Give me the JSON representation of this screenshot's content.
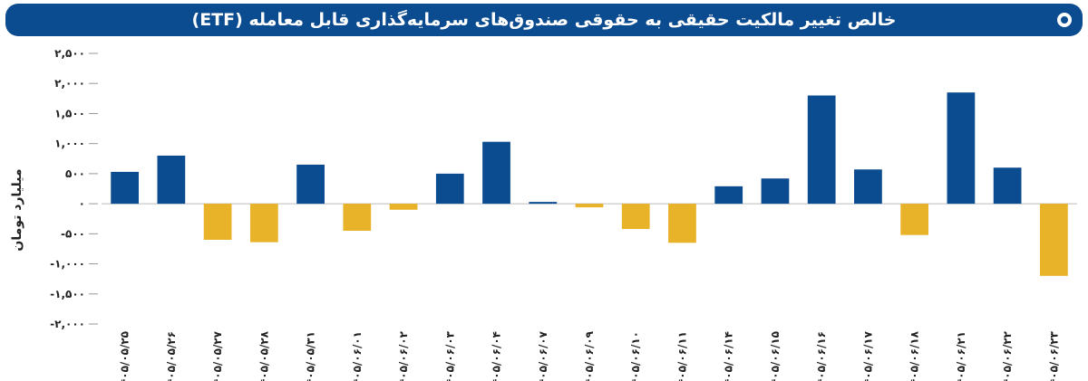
{
  "title": "خالص تغییر مالکیت حقیقی به حقوقی صندوق‌های سرمایه‌گذاری قابل معامله (ETF)",
  "chart_data": {
    "type": "bar",
    "title": "خالص تغییر مالکیت حقیقی به حقوقی صندوق‌های سرمایه‌گذاری قابل معامله (ETF)",
    "ylabel": "میلیارد تومان",
    "xlabel": "",
    "ylim": [
      -2000,
      2500
    ],
    "yticks": [
      2500,
      2000,
      1500,
      1000,
      500,
      0,
      -500,
      -1000,
      -1500,
      -2000
    ],
    "ytick_labels": [
      "۲,۵۰۰",
      "۲,۰۰۰",
      "۱,۵۰۰",
      "۱,۰۰۰",
      "۵۰۰",
      "۰",
      "-۵۰۰",
      "-۱,۰۰۰",
      "-۱,۵۰۰",
      "-۲,۰۰۰"
    ],
    "categories": [
      "۱۴۰۵/۰۵/۲۵",
      "۱۴۰۵/۰۵/۲۶",
      "۱۴۰۵/۰۵/۲۷",
      "۱۴۰۵/۰۵/۲۸",
      "۱۴۰۵/۰۵/۳۱",
      "۱۴۰۵/۰۶/۰۱",
      "۱۴۰۵/۰۶/۰۲",
      "۱۴۰۵/۰۶/۰۳",
      "۱۴۰۵/۰۶/۰۴",
      "۱۴۰۵/۰۶/۰۷",
      "۱۴۰۵/۰۶/۰۹",
      "۱۴۰۵/۰۶/۱۰",
      "۱۴۰۵/۰۶/۱۱",
      "۱۴۰۵/۰۶/۱۴",
      "۱۴۰۵/۰۶/۱۵",
      "۱۴۰۵/۰۶/۱۶",
      "۱۴۰۵/۰۶/۱۷",
      "۱۴۰۵/۰۶/۱۸",
      "۱۴۰۵/۰۶/۲۱",
      "۱۴۰۵/۰۶/۲۲",
      "۱۴۰۵/۰۶/۲۳"
    ],
    "values": [
      530,
      800,
      -600,
      -640,
      650,
      -450,
      -100,
      500,
      1030,
      30,
      -60,
      -420,
      -650,
      290,
      420,
      1800,
      570,
      -520,
      1850,
      600,
      -1200
    ],
    "grid": false,
    "legend": "none",
    "colors": {
      "positive": "#0b4b8f",
      "negative": "#e8b229"
    }
  }
}
